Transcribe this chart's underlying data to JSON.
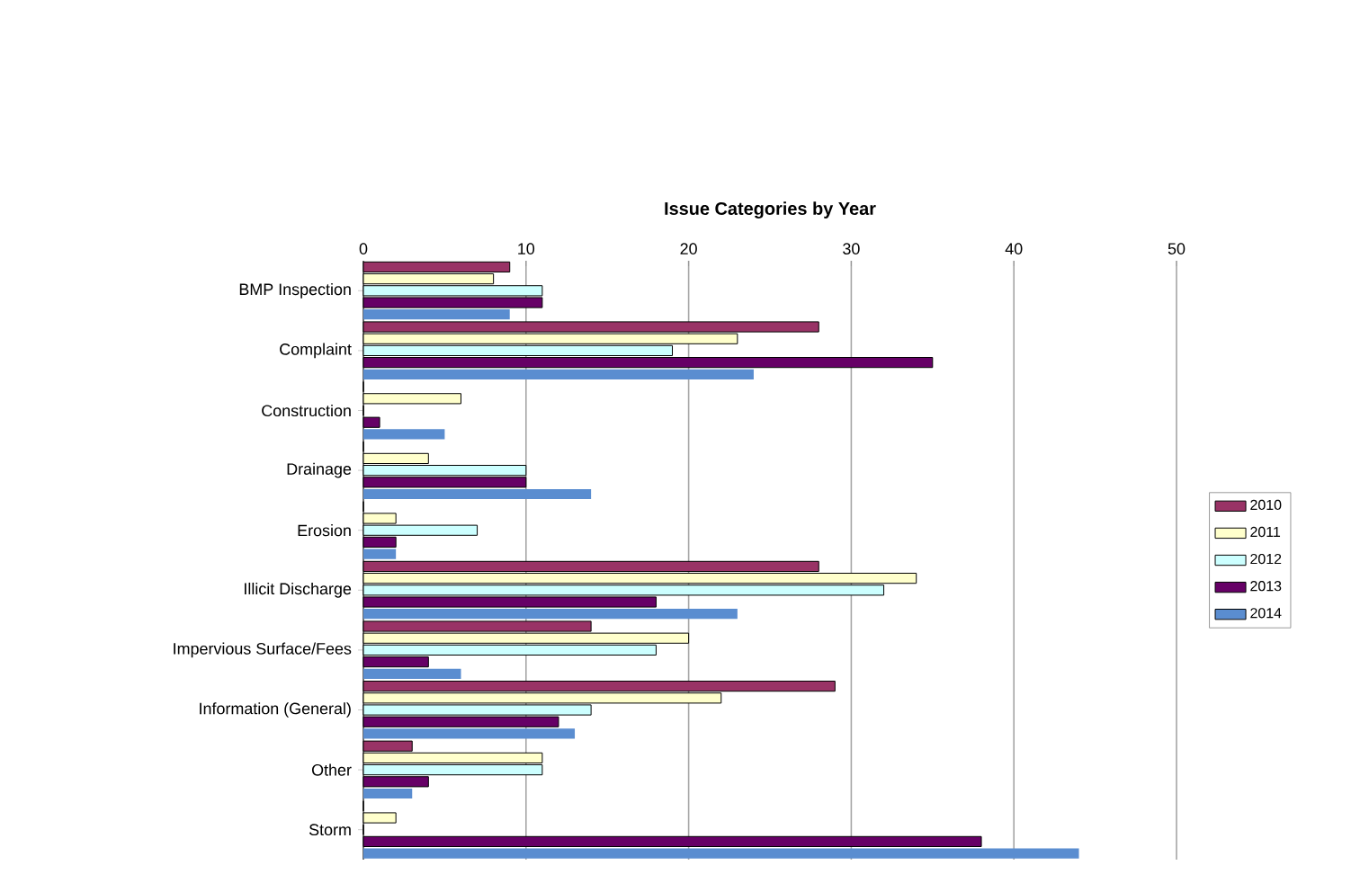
{
  "chart_data": {
    "type": "bar",
    "orientation": "horizontal",
    "title": "Issue Categories by Year",
    "categories": [
      "BMP Inspection",
      "Complaint",
      "Construction",
      "Drainage",
      "Erosion",
      "Illicit Discharge",
      "Impervious Surface/Fees",
      "Information (General)",
      "Other",
      "Storm"
    ],
    "series": [
      {
        "name": "2010",
        "color": "#993366",
        "values": [
          9,
          28,
          0,
          0,
          0,
          28,
          14,
          29,
          3,
          0
        ]
      },
      {
        "name": "2011",
        "color": "#ffffcc",
        "values": [
          8,
          23,
          6,
          4,
          2,
          34,
          20,
          22,
          11,
          2
        ]
      },
      {
        "name": "2012",
        "color": "#ccffff",
        "values": [
          11,
          19,
          0,
          10,
          7,
          32,
          18,
          14,
          11,
          0
        ]
      },
      {
        "name": "2013",
        "color": "#660066",
        "values": [
          11,
          35,
          1,
          10,
          2,
          18,
          4,
          12,
          4,
          38
        ]
      },
      {
        "name": "2014",
        "color": "#5a8dd0",
        "values": [
          9,
          24,
          5,
          14,
          2,
          23,
          6,
          13,
          3,
          44
        ]
      }
    ],
    "xlim": [
      0,
      50
    ],
    "xticks": [
      0,
      10,
      20,
      30,
      40,
      50
    ],
    "grid": "x",
    "legend": "right"
  }
}
